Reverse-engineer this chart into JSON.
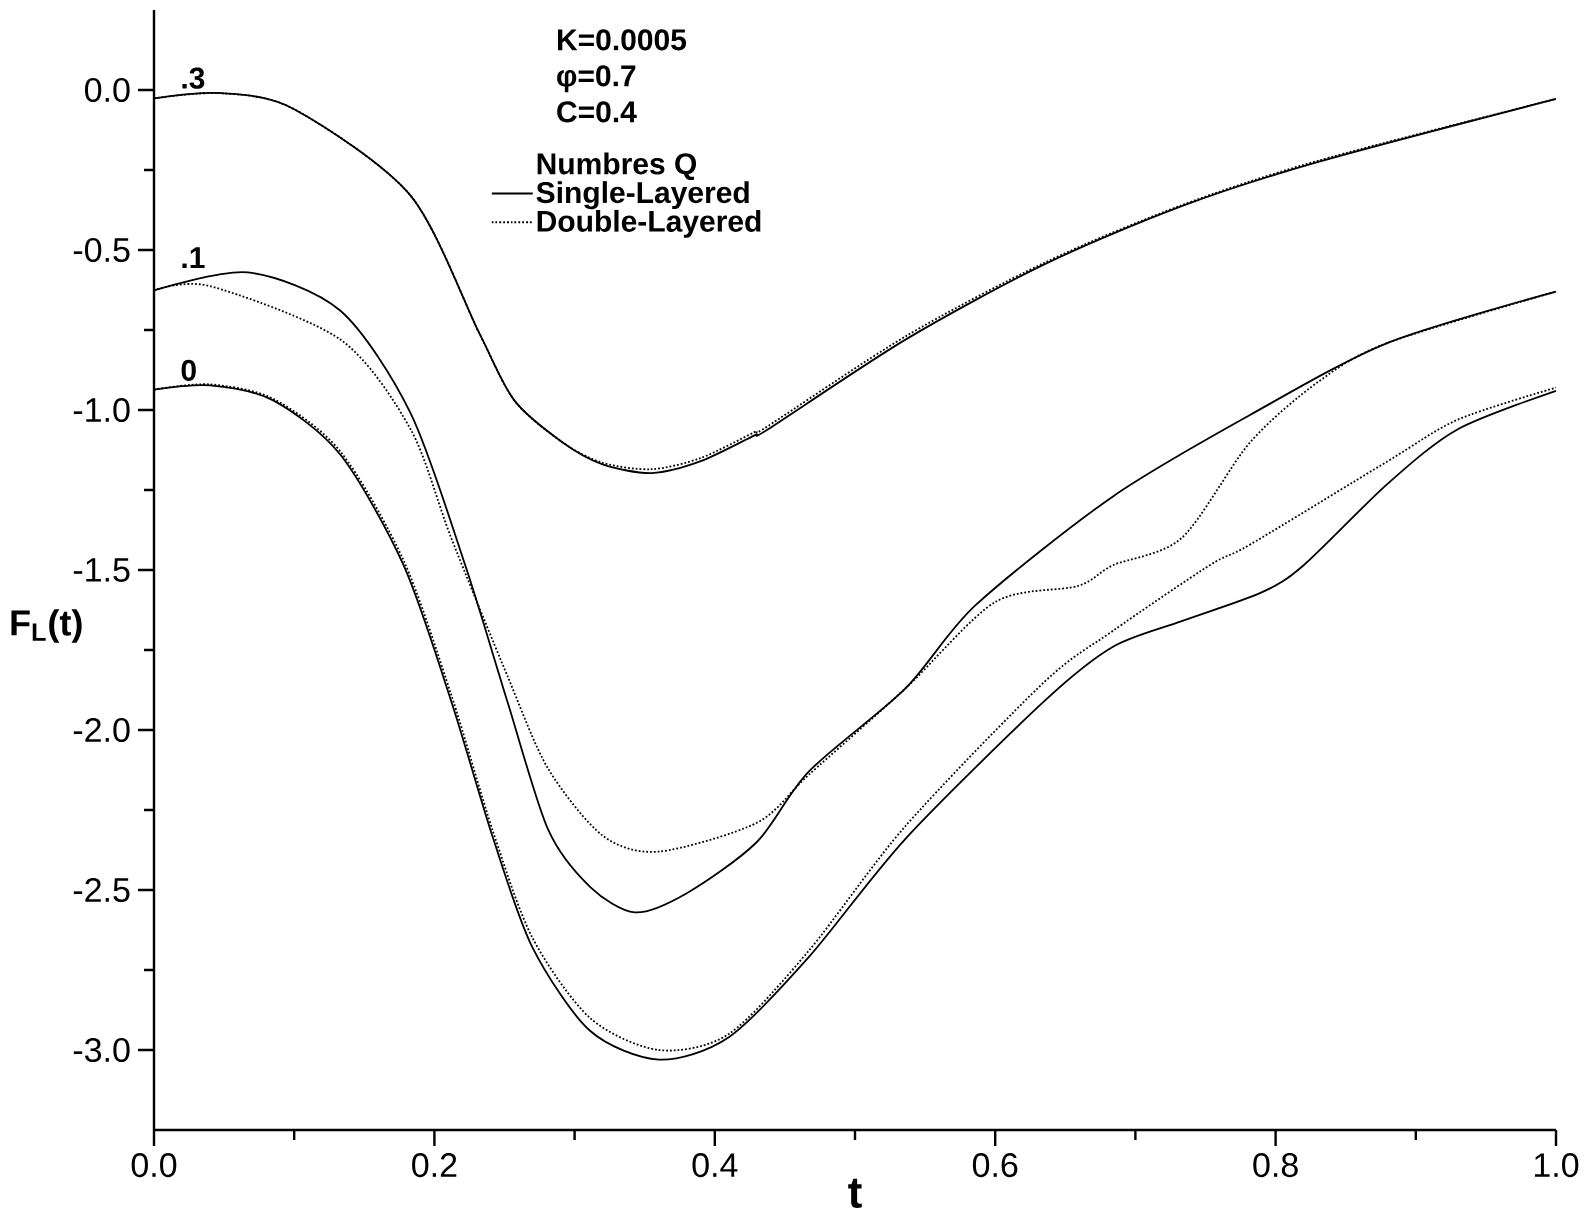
{
  "chart_data": {
    "type": "line",
    "xlabel": "t",
    "ylabel": "F$_{L}$(t)",
    "legend_title": "Numbres Q",
    "legend": "top",
    "marker": "none",
    "xlim": [
      0,
      1
    ],
    "ylim": [
      -3.25,
      0.25
    ],
    "xticks": [
      {
        "value": 0,
        "label": "0.0"
      },
      0.2,
      0.4,
      0.6,
      0.8,
      {
        "value": 1,
        "label": "1.0"
      }
    ],
    "yticks": [
      {
        "value": -3,
        "label": "-3.0"
      },
      -2.5,
      {
        "value": -2,
        "label": "-2.0"
      },
      -1.5,
      {
        "value": -1,
        "label": "-1.0"
      },
      -0.5,
      {
        "value": 0,
        "label": "0.0"
      }
    ],
    "annotations": [
      "K=0.0005",
      "φ=0.7",
      "C=0.4",
      ".3",
      ".1",
      "0"
    ],
    "series": [
      {
        "name": "Single-Layered",
        "color": "#000000",
        "line_style": "solid",
        "x": [
          0,
          0.048,
          0.1,
          0.183,
          0.232,
          0.257,
          0.291,
          0.32,
          0.355,
          0.39,
          0.428,
          0.438,
          0.536,
          0.635,
          0.733,
          0.831,
          1.0
        ],
        "values": [
          -0.026,
          -0.01,
          -0.06,
          -0.33,
          -0.76,
          -0.97,
          -1.1,
          -1.17,
          -1.197,
          -1.16,
          -1.08,
          -1.06,
          -0.78,
          -0.545,
          -0.363,
          -0.224,
          -0.028
        ]
      },
      {
        "name": "Double-Layered",
        "color": "#000000",
        "line_style": "dotted",
        "x": [
          0,
          0.048,
          0.1,
          0.183,
          0.232,
          0.257,
          0.291,
          0.32,
          0.355,
          0.39,
          0.428,
          0.438,
          0.536,
          0.635,
          0.733,
          0.831,
          1.0
        ],
        "values": [
          -0.026,
          -0.01,
          -0.06,
          -0.33,
          -0.76,
          -0.97,
          -1.1,
          -1.165,
          -1.185,
          -1.15,
          -1.07,
          -1.05,
          -0.77,
          -0.54,
          -0.36,
          -0.22,
          -0.028
        ]
      },
      {
        "color": "#000000",
        "line_style": "solid",
        "x": [
          0,
          0.067,
          0.133,
          0.183,
          0.222,
          0.252,
          0.281,
          0.311,
          0.343,
          0.38,
          0.43,
          0.467,
          0.536,
          0.586,
          0.684,
          0.782,
          0.88,
          1.0
        ],
        "values": [
          -0.626,
          -0.57,
          -0.69,
          -1.01,
          -1.485,
          -1.91,
          -2.31,
          -2.49,
          -2.57,
          -2.51,
          -2.35,
          -2.13,
          -1.87,
          -1.61,
          -1.27,
          -1.015,
          -0.79,
          -0.63
        ]
      },
      {
        "color": "#000000",
        "line_style": "dotted",
        "x": [
          0,
          0.04,
          0.133,
          0.183,
          0.212,
          0.252,
          0.281,
          0.32,
          0.36,
          0.43,
          0.467,
          0.536,
          0.6,
          0.659,
          0.684,
          0.733,
          0.782,
          0.831,
          0.88,
          1.0
        ],
        "values": [
          -0.626,
          -0.613,
          -0.78,
          -1.06,
          -1.4,
          -1.83,
          -2.12,
          -2.33,
          -2.38,
          -2.29,
          -2.14,
          -1.87,
          -1.6,
          -1.55,
          -1.485,
          -1.4,
          -1.1,
          -0.91,
          -0.79,
          -0.63
        ]
      },
      {
        "color": "#000000",
        "line_style": "solid",
        "x": [
          0,
          0.04,
          0.085,
          0.133,
          0.178,
          0.212,
          0.242,
          0.27,
          0.311,
          0.36,
          0.41,
          0.467,
          0.536,
          0.635,
          0.684,
          0.733,
          0.79,
          0.82,
          0.88,
          0.93,
          1.0
        ],
        "values": [
          -0.936,
          -0.923,
          -0.97,
          -1.14,
          -1.485,
          -1.91,
          -2.34,
          -2.68,
          -2.94,
          -3.03,
          -2.96,
          -2.71,
          -2.34,
          -1.91,
          -1.74,
          -1.66,
          -1.57,
          -1.485,
          -1.23,
          -1.06,
          -0.94
        ]
      },
      {
        "color": "#000000",
        "line_style": "dotted",
        "x": [
          0,
          0.04,
          0.085,
          0.133,
          0.178,
          0.212,
          0.242,
          0.27,
          0.311,
          0.36,
          0.41,
          0.467,
          0.536,
          0.635,
          0.684,
          0.753,
          0.782,
          0.88,
          0.93,
          1.0
        ],
        "values": [
          -0.936,
          -0.92,
          -0.965,
          -1.13,
          -1.47,
          -1.89,
          -2.32,
          -2.65,
          -2.9,
          -3.0,
          -2.95,
          -2.69,
          -2.3,
          -1.85,
          -1.69,
          -1.485,
          -1.42,
          -1.16,
          -1.03,
          -0.93
        ]
      }
    ]
  }
}
